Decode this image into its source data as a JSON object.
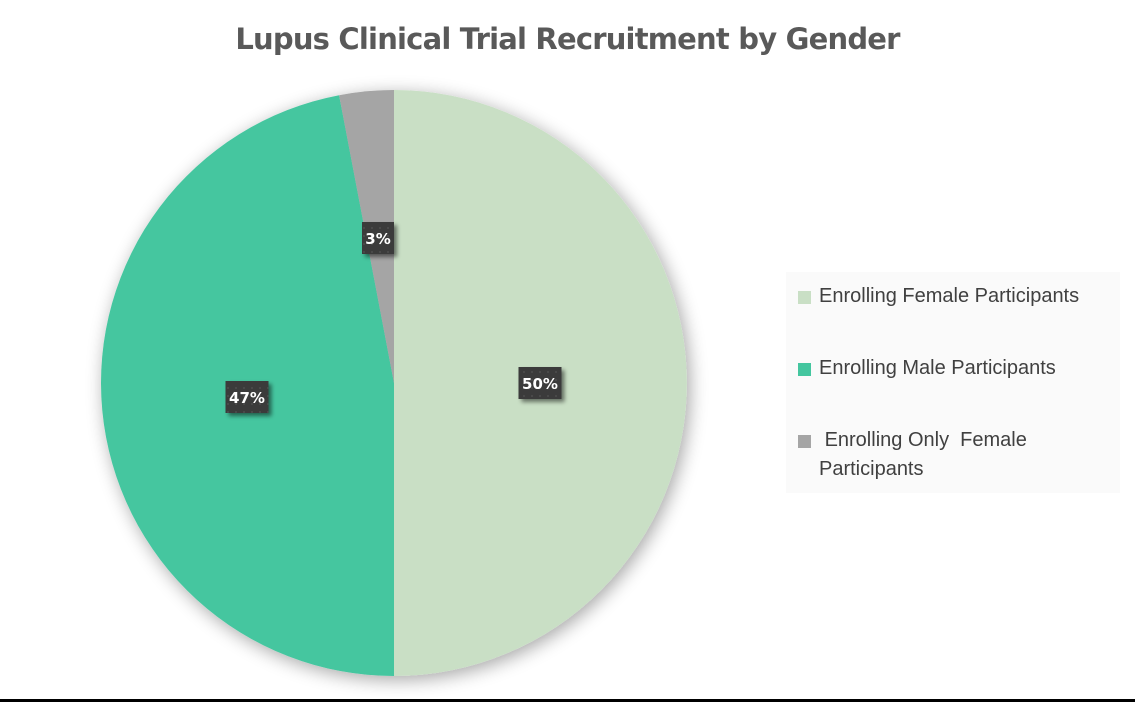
{
  "chart_data": {
    "type": "pie",
    "title": "Lupus Clinical Trial Recruitment by Gender",
    "categories": [
      "Enrolling Female Participants",
      "Enrolling Male Participants",
      " Enrolling Only  Female Participants"
    ],
    "values": [
      50,
      47,
      3
    ],
    "unit": "%",
    "data_labels": [
      "50%",
      "47%",
      "3%"
    ],
    "colors": [
      "#c9dfc5",
      "#44c69f",
      "#a5a5a5"
    ],
    "legend_position": "right",
    "start_angle_deg": 0,
    "direction": "clockwise"
  },
  "title": "Lupus Clinical Trial Recruitment by Gender",
  "legend": {
    "items": [
      {
        "label": "Enrolling Female Participants",
        "color": "#c9dfc5"
      },
      {
        "label": "Enrolling Male Participants",
        "color": "#44c69f"
      },
      {
        "label": " Enrolling Only  Female Participants",
        "color": "#a5a5a5"
      }
    ]
  },
  "labels": {
    "female": "50%",
    "male": "47%",
    "only_female": "3%"
  }
}
